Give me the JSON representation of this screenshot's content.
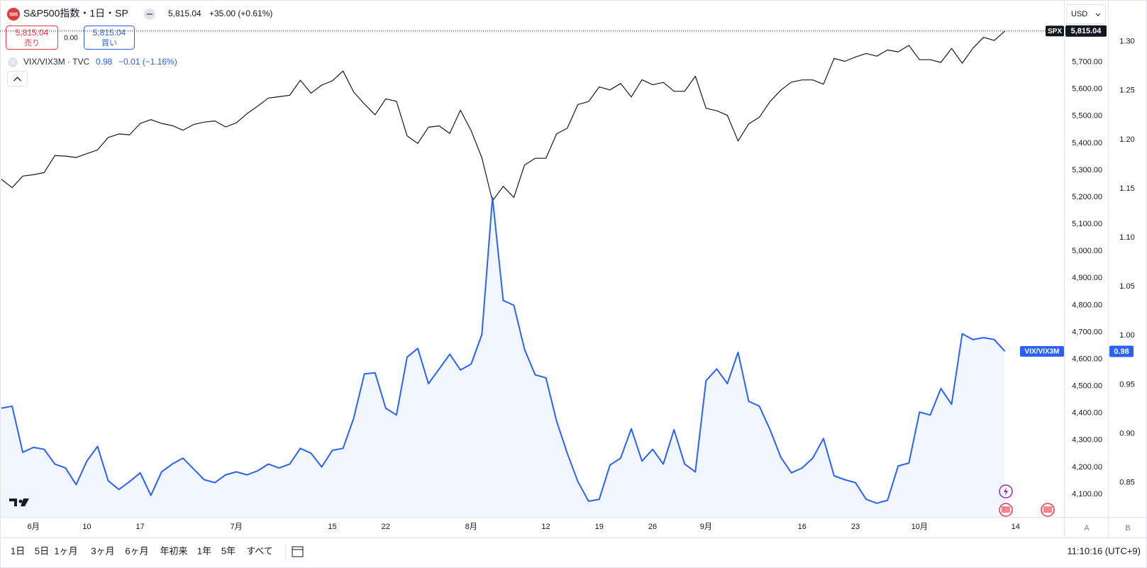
{
  "chart_data": {
    "type": "line",
    "categories": [
      null,
      null,
      null,
      "6月",
      null,
      null,
      null,
      null,
      "10",
      null,
      null,
      null,
      null,
      "17",
      null,
      null,
      null,
      null,
      null,
      null,
      null,
      null,
      "7月",
      null,
      null,
      null,
      null,
      null,
      null,
      null,
      null,
      "15",
      null,
      null,
      null,
      null,
      "22",
      null,
      null,
      null,
      null,
      null,
      null,
      null,
      "8月",
      null,
      null,
      null,
      null,
      null,
      null,
      "12",
      null,
      null,
      null,
      null,
      "19",
      null,
      null,
      null,
      null,
      "26",
      null,
      null,
      null,
      null,
      "9月",
      null,
      null,
      null,
      null,
      null,
      null,
      null,
      null,
      "16",
      null,
      null,
      null,
      null,
      "23",
      null,
      null,
      null,
      null,
      null,
      "10月",
      null,
      null,
      null,
      null,
      null,
      null,
      null,
      null,
      "14"
    ],
    "series": [
      {
        "name": "SPX",
        "color": "#131722",
        "axis": "y",
        "price_line": true,
        "last_label": "5,815.04",
        "values": [
          5266,
          5235,
          5278,
          5283,
          5291,
          5354,
          5352,
          5347,
          5361,
          5375,
          5421,
          5434,
          5431,
          5473,
          5487,
          5473,
          5465,
          5448,
          5469,
          5478,
          5482,
          5460,
          5475,
          5509,
          5537,
          5567,
          5572,
          5577,
          5633,
          5585,
          5615,
          5631,
          5667,
          5589,
          5545,
          5505,
          5564,
          5555,
          5427,
          5399,
          5459,
          5464,
          5436,
          5522,
          5446,
          5346,
          5186,
          5240,
          5199,
          5319,
          5344,
          5344,
          5434,
          5455,
          5543,
          5554,
          5608,
          5597,
          5621,
          5571,
          5635,
          5616,
          5625,
          5592,
          5592,
          5648,
          5529,
          5520,
          5503,
          5408,
          5471,
          5496,
          5554,
          5596,
          5626,
          5634,
          5634,
          5618,
          5714,
          5703,
          5719,
          5732,
          5722,
          5745,
          5738,
          5762,
          5709,
          5709,
          5699,
          5751,
          5696,
          5751,
          5792,
          5780,
          5815,
          null
        ]
      },
      {
        "name": "VIX/VIX3M",
        "color": "#2962ff",
        "axis": "y2",
        "area": true,
        "last_label": "0.98",
        "values": [
          0.926,
          0.928,
          0.881,
          0.886,
          0.884,
          0.869,
          0.865,
          0.848,
          0.872,
          0.887,
          0.852,
          0.843,
          0.851,
          0.86,
          0.837,
          0.861,
          0.869,
          0.875,
          0.864,
          0.853,
          0.85,
          0.858,
          0.861,
          0.858,
          0.862,
          0.869,
          0.865,
          0.869,
          0.885,
          0.88,
          0.866,
          0.883,
          0.885,
          0.916,
          0.961,
          0.962,
          0.926,
          0.919,
          0.978,
          0.987,
          0.951,
          0.966,
          0.981,
          0.965,
          0.971,
          1.001,
          1.141,
          1.036,
          1.031,
          0.986,
          0.96,
          0.957,
          0.913,
          0.88,
          0.851,
          0.831,
          0.833,
          0.868,
          0.875,
          0.905,
          0.872,
          0.884,
          0.869,
          0.904,
          0.869,
          0.861,
          0.954,
          0.966,
          0.951,
          0.983,
          0.933,
          0.928,
          0.904,
          0.876,
          0.86,
          0.865,
          0.875,
          0.895,
          0.857,
          0.853,
          0.85,
          0.833,
          0.829,
          0.832,
          0.867,
          0.87,
          0.922,
          0.919,
          0.946,
          0.93,
          1.002,
          0.996,
          0.998,
          0.996,
          0.984,
          null
        ]
      }
    ],
    "ylim": [
      4016,
      5930
    ],
    "yticks": [
      {
        "value": 4100,
        "label": "4,100.00"
      },
      {
        "value": 4200,
        "label": "4,200.00"
      },
      {
        "value": 4300,
        "label": "4,300.00"
      },
      {
        "value": 4400,
        "label": "4,400.00"
      },
      {
        "value": 4500,
        "label": "4,500.00"
      },
      {
        "value": 4600,
        "label": "4,600.00"
      },
      {
        "value": 4700,
        "label": "4,700.00"
      },
      {
        "value": 4800,
        "label": "4,800.00"
      },
      {
        "value": 4900,
        "label": "4,900.00"
      },
      {
        "value": 5000,
        "label": "5,000.00"
      },
      {
        "value": 5100,
        "label": "5,100.00"
      },
      {
        "value": 5200,
        "label": "5,200.00"
      },
      {
        "value": 5300,
        "label": "5,300.00"
      },
      {
        "value": 5400,
        "label": "5,400.00"
      },
      {
        "value": 5500,
        "label": "5,500.00"
      },
      {
        "value": 5600,
        "label": "5,600.00"
      },
      {
        "value": 5700,
        "label": "5,700.00"
      }
    ],
    "y2lim": [
      0.815,
      1.3425
    ],
    "y2ticks": [
      0.85,
      {
        "value": 0.9,
        "label": "0.90"
      },
      0.95,
      {
        "value": 1,
        "label": "1.00"
      },
      1.05,
      {
        "value": 1.1,
        "label": "1.10"
      },
      1.15,
      {
        "value": 1.2,
        "label": "1.20"
      },
      1.25,
      {
        "value": 1.3,
        "label": "1.30"
      }
    ],
    "grid": false
  },
  "ui": {
    "symbol_icon": "500",
    "symbol": "S&P500指数・1日・SP",
    "price": "5,815.04",
    "change": "+35.00 (+0.61%)",
    "sell_price": "5,815.04",
    "sell_label": "売り",
    "spread": "0.00",
    "buy_price": "5,815.04",
    "buy_label": "買い",
    "overlay_icon": "V",
    "overlay": "VIX/VIX3M · TVC",
    "overlay_value": "0.98",
    "overlay_change": "−0.01 (−1.16%)",
    "currency": "USD",
    "scale_a": "A",
    "scale_b": "B",
    "periods": [
      "1日",
      "5日",
      "1ヶ月",
      "3ヶ月",
      "6ヶ月",
      "年初来",
      "1年",
      "5年",
      "すべて"
    ],
    "clock": "11:10:16 (UTC+9)"
  }
}
